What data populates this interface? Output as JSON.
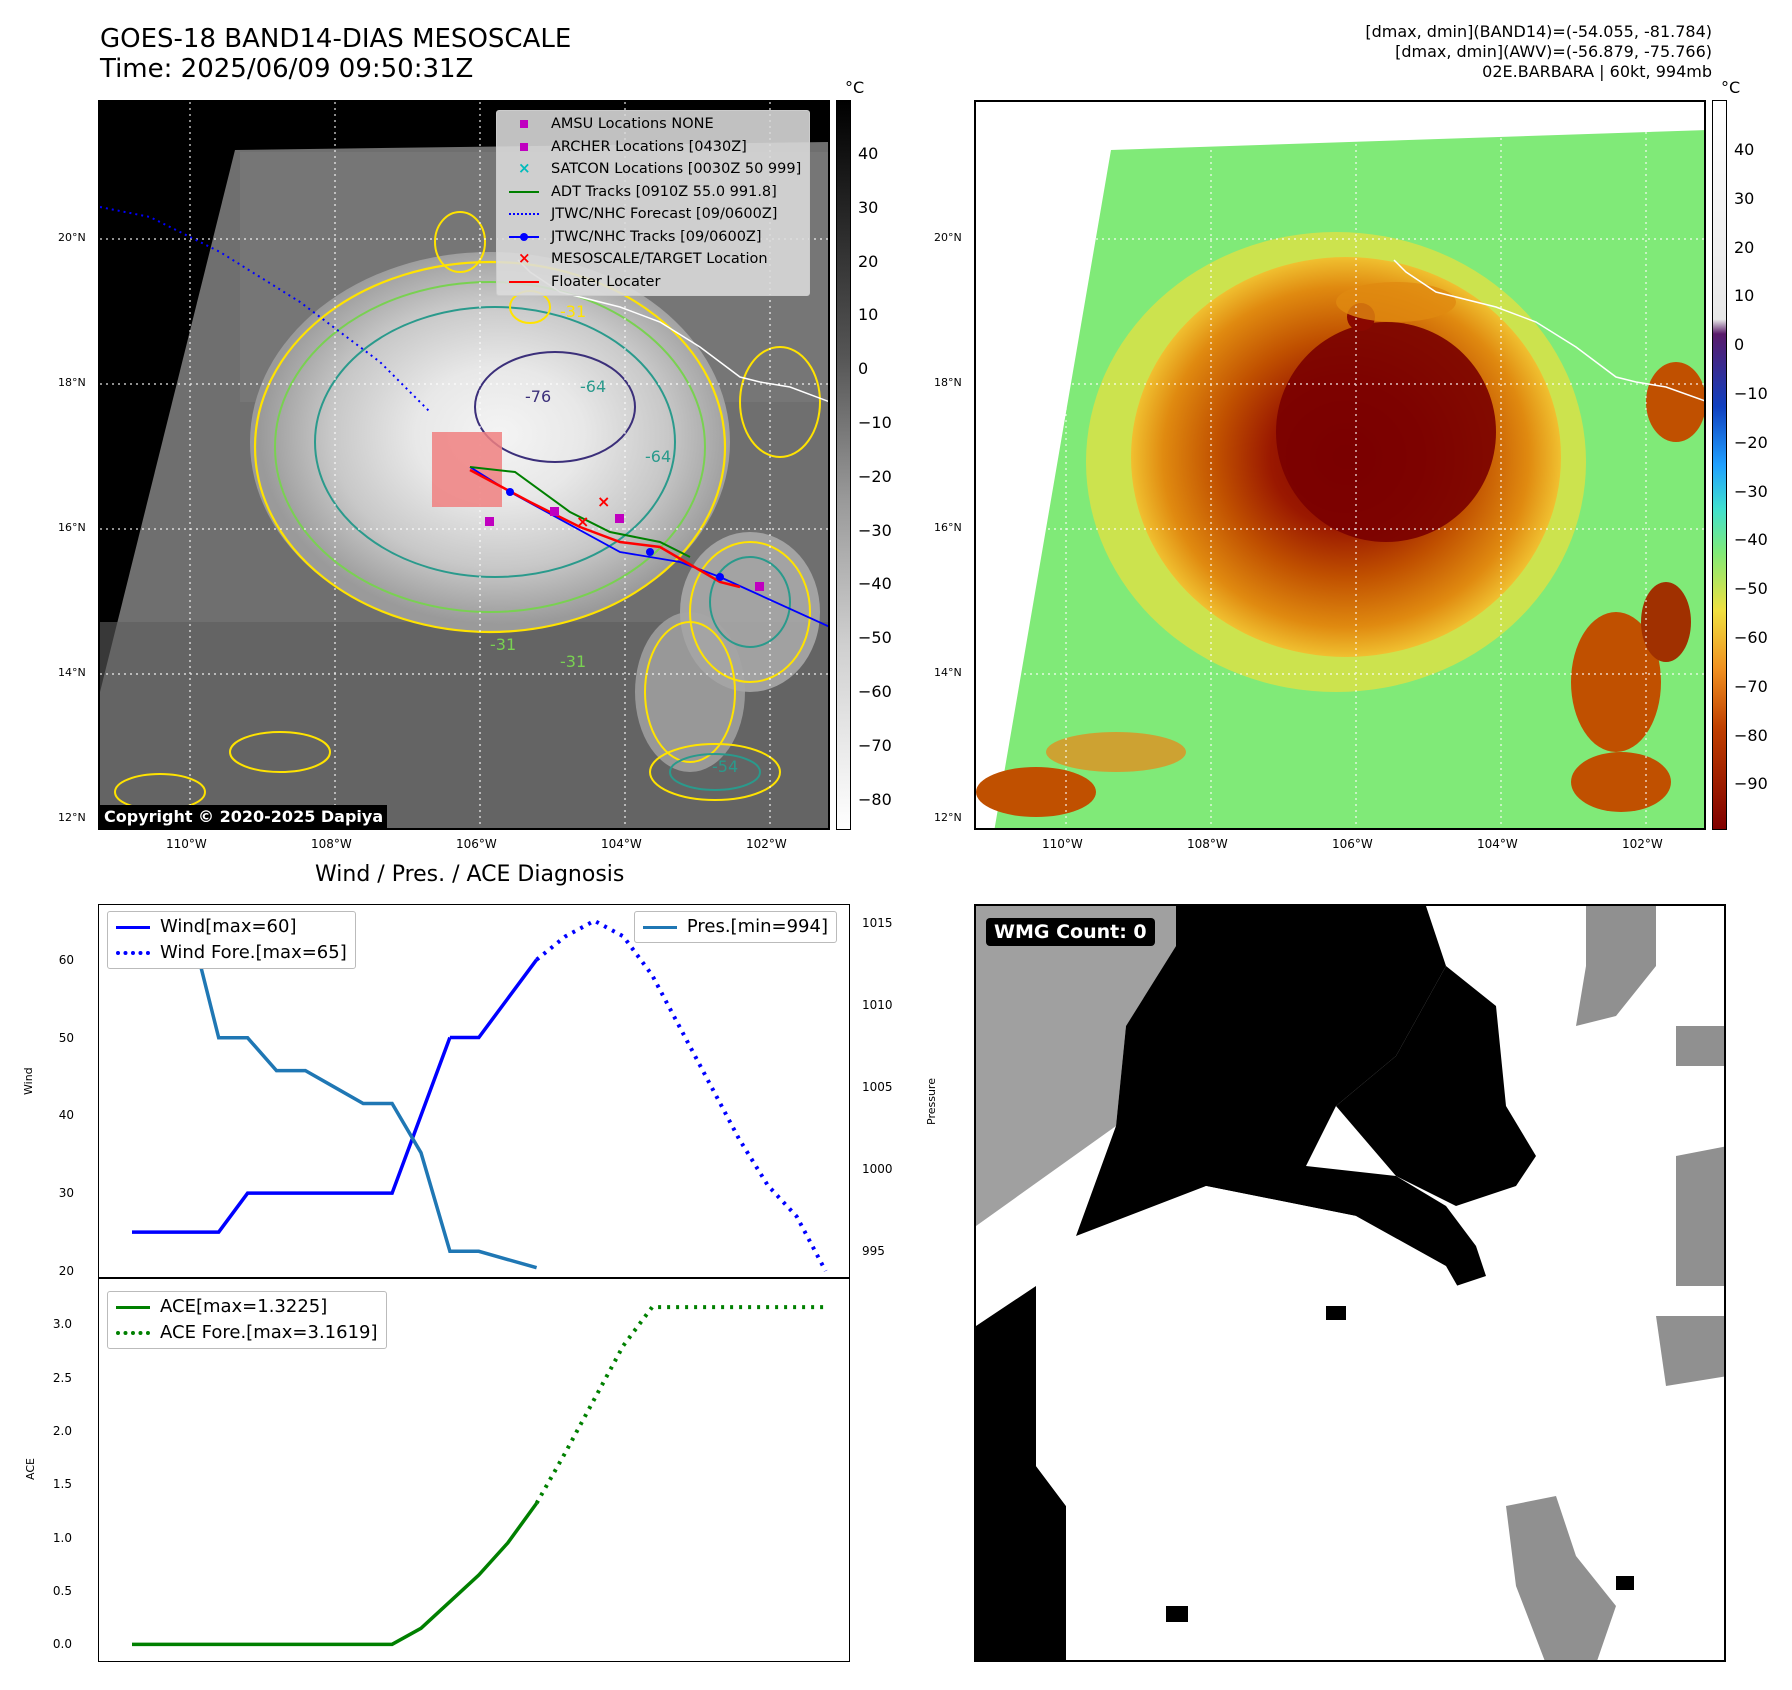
{
  "header": {
    "title_line1": "GOES-18 BAND14-DIAS MESOSCALE",
    "title_line2": "Time: 2025/06/09 09:50:31Z",
    "right_line1": "[dmax, dmin](BAND14)=(-54.055, -81.784)",
    "right_line2": "[dmax, dmin](AWV)=(-56.879, -75.766)",
    "right_line3": "02E.BARBARA | 60kt, 994mb"
  },
  "map": {
    "lat_labels": [
      "20°N",
      "18°N",
      "16°N",
      "14°N",
      "12°N"
    ],
    "lon_labels": [
      "110°W",
      "108°W",
      "106°W",
      "104°W",
      "102°W"
    ],
    "contour_labels": [
      "-76",
      "-64",
      "-64",
      "-31",
      "-31",
      "-31",
      "-54"
    ],
    "copyright": "Copyright © 2020-2025 Dapiya",
    "colors": {
      "contour_yellow": "#ffe300",
      "contour_green": "#79d151",
      "contour_teal": "#2a9a8c",
      "contour_purple": "#3b2f7a",
      "track_red": "#ff0000",
      "track_blue": "#0000ff",
      "adt_green": "#008000"
    },
    "legend": [
      {
        "label": "AMSU Locations NONE",
        "icon": "magenta-square"
      },
      {
        "label": "ARCHER Locations [0430Z]",
        "icon": "magenta-square"
      },
      {
        "label": "SATCON Locations [0030Z 50 999]",
        "icon": "cyan-x"
      },
      {
        "label": "ADT Tracks [0910Z 55.0 991.8]",
        "icon": "green-line"
      },
      {
        "label": "JTWC/NHC Forecast [09/0600Z]",
        "icon": "blue-dotted-line"
      },
      {
        "label": "JTWC/NHC Tracks [09/0600Z]",
        "icon": "blue-line-dot"
      },
      {
        "label": "MESOSCALE/TARGET Location",
        "icon": "red-x"
      },
      {
        "label": "Floater Locater",
        "icon": "red-line"
      }
    ]
  },
  "colorbar_gray": {
    "unit": "°C",
    "ticks": [
      "40",
      "30",
      "20",
      "10",
      "0",
      "−10",
      "−20",
      "−30",
      "−40",
      "−50",
      "−60",
      "−70",
      "−80"
    ]
  },
  "colorbar_color": {
    "unit": "°C",
    "ticks": [
      "40",
      "30",
      "20",
      "10",
      "0",
      "−10",
      "−20",
      "−30",
      "−40",
      "−50",
      "−60",
      "−70",
      "−80",
      "−90"
    ]
  },
  "wmg": {
    "label": "WMG Count: 0"
  },
  "chart_data": [
    {
      "type": "line",
      "title": "Wind / Pres. / ACE Diagnosis",
      "ylabel": "Wind",
      "y2label": "Pressure",
      "ylim": [
        20,
        66
      ],
      "y2lim": [
        993.8,
        1015.6
      ],
      "yticks": [
        "60",
        "50",
        "40",
        "30",
        "20"
      ],
      "y2ticks": [
        "1015",
        "1010",
        "1005",
        "1000",
        "995"
      ],
      "series": [
        {
          "name": "Wind[max=60]",
          "color": "#0000ff",
          "style": "solid",
          "axis": "left",
          "x": [
            0,
            1,
            2,
            3,
            4,
            5,
            6,
            7,
            8,
            9,
            10,
            11
          ],
          "values": [
            25,
            25,
            25,
            25,
            30,
            30,
            30,
            30,
            30,
            30,
            40,
            50
          ]
        },
        {
          "name": "Wind[max=60]",
          "color": "#0000ff",
          "style": "solid",
          "axis": "left",
          "x": [
            11,
            12,
            13,
            14
          ],
          "values": [
            50,
            50,
            55,
            60
          ]
        },
        {
          "name": "Wind Fore.[max=65]",
          "color": "#0000ff",
          "style": "dotted",
          "axis": "left",
          "x": [
            14,
            15,
            16,
            17,
            18,
            19,
            20,
            21,
            22,
            23,
            24
          ],
          "values": [
            60,
            63,
            65,
            63,
            58,
            51,
            44,
            37,
            31,
            27,
            20
          ]
        },
        {
          "name": "Pres.[min=994]",
          "color": "#1f77b4",
          "style": "solid",
          "axis": "right",
          "x": [
            0,
            1,
            2,
            3,
            4,
            5,
            6,
            7,
            8,
            9,
            10,
            11,
            12,
            13,
            14
          ],
          "values": [
            1015,
            1015,
            1015,
            1008,
            1008,
            1006,
            1006,
            1005,
            1004,
            1004,
            1001,
            995,
            995,
            994.5,
            994
          ]
        }
      ],
      "legend_left": [
        "Wind[max=60]",
        "Wind Fore.[max=65]"
      ],
      "legend_right": [
        "Pres.[min=994]"
      ]
    },
    {
      "type": "line",
      "ylabel": "ACE",
      "ylim": [
        -0.1,
        3.35
      ],
      "yticks": [
        "3.0",
        "2.5",
        "2.0",
        "1.5",
        "1.0",
        "0.5",
        "0.0"
      ],
      "series": [
        {
          "name": "ACE[max=1.3225]",
          "color": "#008000",
          "style": "solid",
          "x": [
            0,
            1,
            2,
            3,
            4,
            5,
            6,
            7,
            8,
            9,
            10,
            11,
            12,
            13,
            14
          ],
          "values": [
            0,
            0,
            0,
            0,
            0,
            0,
            0,
            0,
            0,
            0,
            0.15,
            0.4,
            0.65,
            0.95,
            1.3225
          ]
        },
        {
          "name": "ACE Fore.[max=3.1619]",
          "color": "#008000",
          "style": "dotted",
          "x": [
            14,
            15,
            16,
            17,
            18,
            19,
            20,
            21,
            22,
            23,
            24
          ],
          "values": [
            1.3225,
            1.8,
            2.3,
            2.8,
            3.1619,
            3.1619,
            3.1619,
            3.1619,
            3.1619,
            3.1619,
            3.1619
          ]
        }
      ],
      "legend": [
        "ACE[max=1.3225]",
        "ACE Fore.[max=3.1619]"
      ]
    }
  ]
}
